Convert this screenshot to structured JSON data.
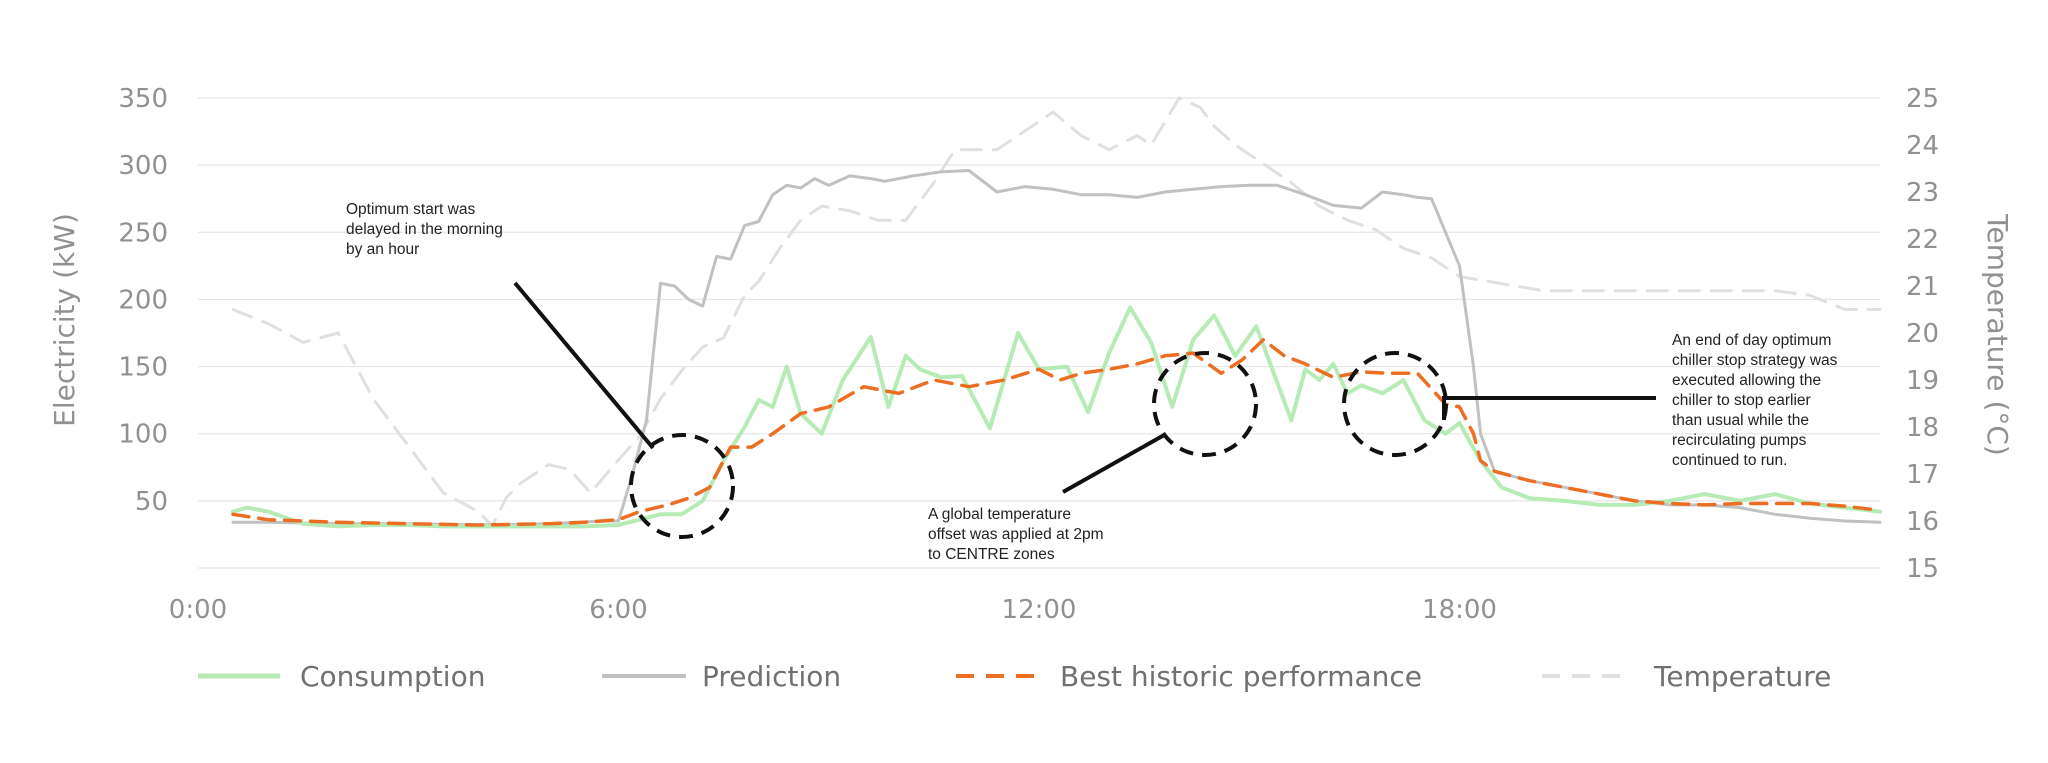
{
  "chart_data": {
    "type": "line",
    "xlabel": "",
    "ylabel": "Electricity (kW)",
    "y2label": "Temperature (°C)",
    "xlim": [
      0,
      24
    ],
    "ylim": [
      0,
      350
    ],
    "y2lim": [
      15,
      25
    ],
    "x_ticks": [
      {
        "value": 0,
        "label": "0:00"
      },
      {
        "value": 6,
        "label": "6:00"
      },
      {
        "value": 12,
        "label": "12:00"
      },
      {
        "value": 18,
        "label": "18:00"
      }
    ],
    "y_ticks": [
      50,
      100,
      150,
      200,
      250,
      300,
      350
    ],
    "y2_ticks": [
      15,
      16,
      17,
      18,
      19,
      20,
      21,
      22,
      23,
      24,
      25
    ],
    "grid": "horizontal",
    "legend_position": "bottom",
    "series": [
      {
        "name": "Consumption",
        "axis": "left",
        "color": "#b6ebb6",
        "style": "solid",
        "x": [
          0.5,
          0.7,
          1.0,
          1.5,
          2.0,
          2.5,
          3.0,
          3.5,
          4.0,
          4.5,
          5.0,
          5.5,
          6.0,
          6.3,
          6.6,
          6.9,
          7.2,
          7.5,
          7.8,
          8.0,
          8.2,
          8.4,
          8.6,
          8.9,
          9.2,
          9.6,
          9.85,
          10.1,
          10.3,
          10.6,
          10.9,
          11.3,
          11.7,
          12.0,
          12.4,
          12.7,
          13.0,
          13.3,
          13.6,
          13.9,
          14.2,
          14.5,
          14.8,
          15.1,
          15.4,
          15.6,
          15.8,
          16.0,
          16.2,
          16.4,
          16.6,
          16.9,
          17.2,
          17.5,
          17.8,
          18.0,
          18.3,
          18.6,
          19.0,
          19.5,
          20.0,
          20.5,
          21.0,
          21.5,
          22.0,
          22.5,
          23.0,
          23.5,
          24.0
        ],
        "y": [
          42,
          45,
          42,
          33,
          31,
          32,
          32,
          31,
          31,
          31,
          31,
          31,
          32,
          36,
          40,
          40,
          50,
          80,
          105,
          125,
          120,
          150,
          115,
          100,
          140,
          172,
          120,
          158,
          148,
          142,
          143,
          104,
          175,
          148,
          150,
          116,
          160,
          194,
          168,
          120,
          170,
          188,
          158,
          180,
          138,
          110,
          148,
          140,
          152,
          130,
          136,
          130,
          140,
          110,
          100,
          108,
          80,
          60,
          52,
          50,
          47,
          47,
          50,
          55,
          50,
          55,
          48,
          45,
          42
        ]
      },
      {
        "name": "Prediction",
        "axis": "left",
        "color": "#bfc1c2",
        "style": "solid",
        "x": [
          0.5,
          1.0,
          2.0,
          3.0,
          4.0,
          5.0,
          5.8,
          6.0,
          6.2,
          6.4,
          6.6,
          6.8,
          7.0,
          7.2,
          7.4,
          7.6,
          7.8,
          8.0,
          8.2,
          8.4,
          8.6,
          8.8,
          9.0,
          9.3,
          9.6,
          9.8,
          10.2,
          10.6,
          11.0,
          11.4,
          11.8,
          12.2,
          12.6,
          13.0,
          13.4,
          13.8,
          14.2,
          14.6,
          15.0,
          15.4,
          15.8,
          16.2,
          16.6,
          16.9,
          17.2,
          17.4,
          17.6,
          17.8,
          18.0,
          18.2,
          18.3,
          18.5,
          19.0,
          19.5,
          20.0,
          20.5,
          21.0,
          21.5,
          22.0,
          22.5,
          23.0,
          23.5,
          24.0
        ],
        "y": [
          34,
          34,
          33,
          33,
          32,
          33,
          35,
          35,
          70,
          110,
          212,
          210,
          200,
          195,
          232,
          230,
          255,
          258,
          278,
          285,
          283,
          290,
          285,
          292,
          290,
          288,
          292,
          295,
          296,
          280,
          284,
          282,
          278,
          278,
          276,
          280,
          282,
          284,
          285,
          285,
          278,
          270,
          268,
          280,
          278,
          276,
          275,
          250,
          225,
          150,
          100,
          72,
          65,
          60,
          55,
          50,
          47,
          47,
          45,
          40,
          37,
          35,
          34
        ]
      },
      {
        "name": "Best historic performance",
        "axis": "left",
        "color": "#ec6e22",
        "style": "dashed",
        "x": [
          0.5,
          1.0,
          2.0,
          3.0,
          4.0,
          5.0,
          5.5,
          6.0,
          6.3,
          6.7,
          7.0,
          7.3,
          7.6,
          7.9,
          8.2,
          8.6,
          9.0,
          9.5,
          10.0,
          10.5,
          11.0,
          11.5,
          12.0,
          12.3,
          12.6,
          13.0,
          13.4,
          13.8,
          14.2,
          14.6,
          14.9,
          15.2,
          15.5,
          15.8,
          16.2,
          16.6,
          17.0,
          17.4,
          17.8,
          18.0,
          18.2,
          18.3,
          18.5,
          19.0,
          19.5,
          20.0,
          20.5,
          21.0,
          21.5,
          22.0,
          22.5,
          23.0,
          23.5,
          24.0
        ],
        "y": [
          40,
          36,
          34,
          33,
          32,
          33,
          34,
          36,
          42,
          47,
          52,
          60,
          90,
          90,
          100,
          115,
          120,
          135,
          130,
          140,
          135,
          140,
          148,
          140,
          145,
          148,
          152,
          158,
          160,
          145,
          155,
          170,
          158,
          152,
          142,
          146,
          145,
          145,
          122,
          120,
          100,
          80,
          72,
          65,
          60,
          55,
          50,
          48,
          47,
          48,
          48,
          48,
          46,
          43
        ]
      },
      {
        "name": "Temperature",
        "axis": "right",
        "color": "#dfe1e1",
        "style": "dashed",
        "x": [
          0.5,
          1.0,
          1.5,
          2.0,
          2.5,
          3.0,
          3.5,
          4.0,
          4.2,
          4.4,
          4.6,
          5.0,
          5.3,
          5.6,
          6.0,
          6.3,
          6.6,
          6.9,
          7.2,
          7.5,
          7.8,
          8.0,
          8.3,
          8.6,
          8.9,
          9.3,
          9.7,
          10.1,
          10.5,
          10.8,
          11.1,
          11.4,
          11.8,
          12.2,
          12.6,
          13.0,
          13.4,
          13.6,
          14.0,
          14.3,
          14.5,
          14.8,
          15.2,
          15.6,
          16.0,
          16.4,
          16.8,
          17.2,
          17.6,
          18.0,
          18.4,
          18.8,
          19.2,
          19.8,
          20.5,
          21.0,
          21.5,
          22.0,
          22.5,
          23.0,
          23.5,
          24.0
        ],
        "y": [
          20.5,
          20.2,
          19.8,
          20.0,
          18.6,
          17.6,
          16.6,
          16.2,
          15.9,
          16.5,
          16.8,
          17.2,
          17.1,
          16.6,
          17.3,
          17.8,
          18.6,
          19.2,
          19.7,
          19.9,
          20.8,
          21.1,
          21.8,
          22.4,
          22.7,
          22.6,
          22.4,
          22.4,
          23.2,
          23.9,
          23.9,
          23.9,
          24.3,
          24.7,
          24.2,
          23.9,
          24.2,
          24.0,
          25.0,
          24.8,
          24.4,
          24.0,
          23.6,
          23.2,
          22.7,
          22.4,
          22.2,
          21.8,
          21.6,
          21.2,
          21.1,
          21.0,
          20.9,
          20.9,
          20.9,
          20.9,
          20.9,
          20.9,
          20.9,
          20.8,
          20.5,
          20.5
        ]
      }
    ],
    "legend": [
      "Consumption",
      "Prediction",
      "Best historic performance",
      "Temperature"
    ],
    "annotations": [
      {
        "lines": [
          "Optimum start was",
          "delayed in the morning",
          "by an hour"
        ]
      },
      {
        "lines": [
          "A global temperature",
          "offset was applied at 2pm",
          "to CENTRE zones"
        ]
      },
      {
        "lines": [
          "An end of day optimum",
          "chiller stop strategy was",
          "executed allowing the",
          "chiller to stop earlier",
          "than usual while the",
          "recirculating pumps",
          "continued to run."
        ]
      }
    ],
    "highlight_circles_at_hours": [
      7.2,
      14.8,
      17.5
    ]
  }
}
